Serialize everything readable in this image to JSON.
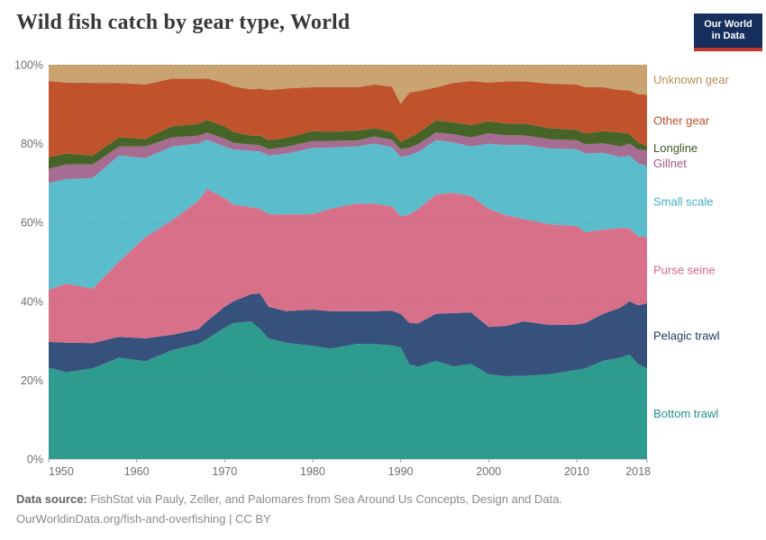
{
  "header": {
    "title": "Wild fish catch by gear type, World",
    "logo": {
      "line1": "Our World",
      "line2": "in Data",
      "bg_color": "#152E5C",
      "stripe_color": "#C0392B"
    }
  },
  "footer": {
    "source_label": "Data source:",
    "source_rest": " FishStat via Pauly, Zeller, and Palomares from Sea Around Us Concepts, Design and Data.",
    "line2": "OurWorldinData.org/fish-and-overfishing | CC BY"
  },
  "chart_data": {
    "type": "area",
    "subtype": "stacked-100-percent",
    "title": "Wild fish catch by gear type, World",
    "unit": "%",
    "xlim": [
      1950,
      2018
    ],
    "ylim": [
      0,
      100
    ],
    "x_ticks": [
      1950,
      1960,
      1970,
      1980,
      1990,
      2000,
      2010,
      2018
    ],
    "y_ticks": [
      0,
      20,
      40,
      60,
      80,
      100
    ],
    "grid": "dashed-horizontal",
    "legend_position": "right",
    "x": [
      1950,
      1952,
      1955,
      1958,
      1961,
      1964,
      1967,
      1968,
      1970,
      1971,
      1973,
      1974,
      1975,
      1977,
      1980,
      1982,
      1985,
      1987,
      1989,
      1990,
      1991,
      1992,
      1994,
      1996,
      1998,
      2000,
      2002,
      2004,
      2007,
      2010,
      2011,
      2013,
      2015,
      2016,
      2017,
      2018
    ],
    "series": [
      {
        "name": "Bottom trawl",
        "color": "#2E9B8F",
        "label_color": "#1F948A",
        "values": [
          23.2,
          22,
          23,
          25.7,
          24.8,
          27.6,
          29.2,
          30.5,
          33.3,
          34.5,
          34.9,
          33,
          30.6,
          29.5,
          28.7,
          28,
          29.2,
          29.2,
          28.8,
          28.3,
          24,
          23.4,
          24.9,
          23.5,
          24.1,
          21.5,
          21,
          21.1,
          21.5,
          22.6,
          23,
          24.9,
          25.7,
          26.5,
          24,
          23
        ]
      },
      {
        "name": "Pelagic trawl",
        "color": "#36517C",
        "label_color": "#1F3D63",
        "values": [
          6.5,
          7.5,
          6.4,
          5.3,
          5.8,
          3.9,
          3.7,
          4.5,
          5.3,
          5.5,
          6.9,
          9,
          8,
          8,
          9.2,
          9.5,
          8.3,
          8.3,
          8.8,
          8.5,
          10.5,
          11,
          11.9,
          13.5,
          13.1,
          12,
          12.8,
          13.8,
          12.5,
          11.5,
          11.5,
          11.9,
          12.7,
          13.5,
          15,
          16.5
        ]
      },
      {
        "name": "Purse seine",
        "color": "#D8708A",
        "label_color": "#D56A85",
        "values": [
          13.3,
          15,
          13.8,
          19.1,
          25.7,
          29,
          32.6,
          33.5,
          27.6,
          24.5,
          22.1,
          21.5,
          23.5,
          24.5,
          24.2,
          26,
          27.3,
          27.3,
          26.5,
          24.8,
          27.5,
          29,
          30.3,
          30.5,
          29.5,
          30,
          28,
          26,
          25.5,
          25,
          23,
          21.4,
          20.2,
          18.5,
          17.5,
          16.8
        ]
      },
      {
        "name": "Small scale",
        "color": "#5BBCCB",
        "label_color": "#45AEC2",
        "values": [
          27,
          26.5,
          28.1,
          26.9,
          20,
          18.8,
          14.5,
          12.5,
          13.1,
          14,
          14.3,
          14.5,
          14.9,
          15.5,
          16.8,
          15.5,
          14.5,
          15.2,
          15,
          15,
          15,
          14.5,
          13.8,
          12.8,
          12.6,
          16.5,
          17.8,
          18.8,
          19.3,
          19.5,
          20,
          19.5,
          18,
          18.5,
          18.5,
          18
        ]
      },
      {
        "name": "Gillnet",
        "color": "#A76C92",
        "label_color": "#A2568A",
        "values": [
          3.6,
          3.7,
          3.4,
          2.3,
          3,
          2.3,
          2,
          1.8,
          1.9,
          1.7,
          1.6,
          1.6,
          1.6,
          1.7,
          1.8,
          1.7,
          1.5,
          1.8,
          1.9,
          2,
          2,
          2,
          1.9,
          2.1,
          2.3,
          2.6,
          2.5,
          2.4,
          2.3,
          2.3,
          2.3,
          2.4,
          2.7,
          3,
          3.5,
          4.1
        ]
      },
      {
        "name": "Longline",
        "color": "#476428",
        "label_color": "#3D5A22",
        "values": [
          3,
          2.8,
          2.3,
          2.3,
          1.9,
          2.8,
          3,
          3.2,
          3.2,
          2.8,
          2.2,
          2.4,
          2.3,
          2.3,
          2.5,
          2.3,
          2.5,
          2.1,
          2,
          1.9,
          2.5,
          2.8,
          3.1,
          3,
          3.1,
          3.1,
          3,
          3,
          2.8,
          2.6,
          2.8,
          3.1,
          3.5,
          2.5,
          1.8,
          0.9
        ]
      },
      {
        "name": "Other gear",
        "color": "#C1532C",
        "label_color": "#BE512A",
        "values": [
          19.3,
          18,
          18.4,
          13.8,
          13.8,
          12.1,
          11.5,
          10.5,
          11,
          11.5,
          11.8,
          12,
          12.7,
          12.5,
          11.1,
          11.3,
          11,
          11.1,
          11.5,
          9.6,
          11.5,
          10.6,
          8.4,
          10,
          11.2,
          9.8,
          10.7,
          10.7,
          11.3,
          11.5,
          11.7,
          11.1,
          10.8,
          11,
          12.2,
          13.1
        ]
      },
      {
        "name": "Unknown gear",
        "color": "#C9A470",
        "label_color": "#BC8E54",
        "values": [
          4.1,
          4.5,
          4.6,
          4.6,
          5,
          3.5,
          3.5,
          3.5,
          4.6,
          5.5,
          6.2,
          6,
          6.4,
          6,
          5.7,
          5.7,
          5.7,
          5,
          5.5,
          9.9,
          7,
          6.7,
          5.7,
          4.6,
          4.1,
          4.5,
          4.2,
          4.2,
          4.8,
          5,
          5.7,
          5.7,
          6.4,
          6.5,
          7.5,
          7.6
        ]
      }
    ]
  }
}
